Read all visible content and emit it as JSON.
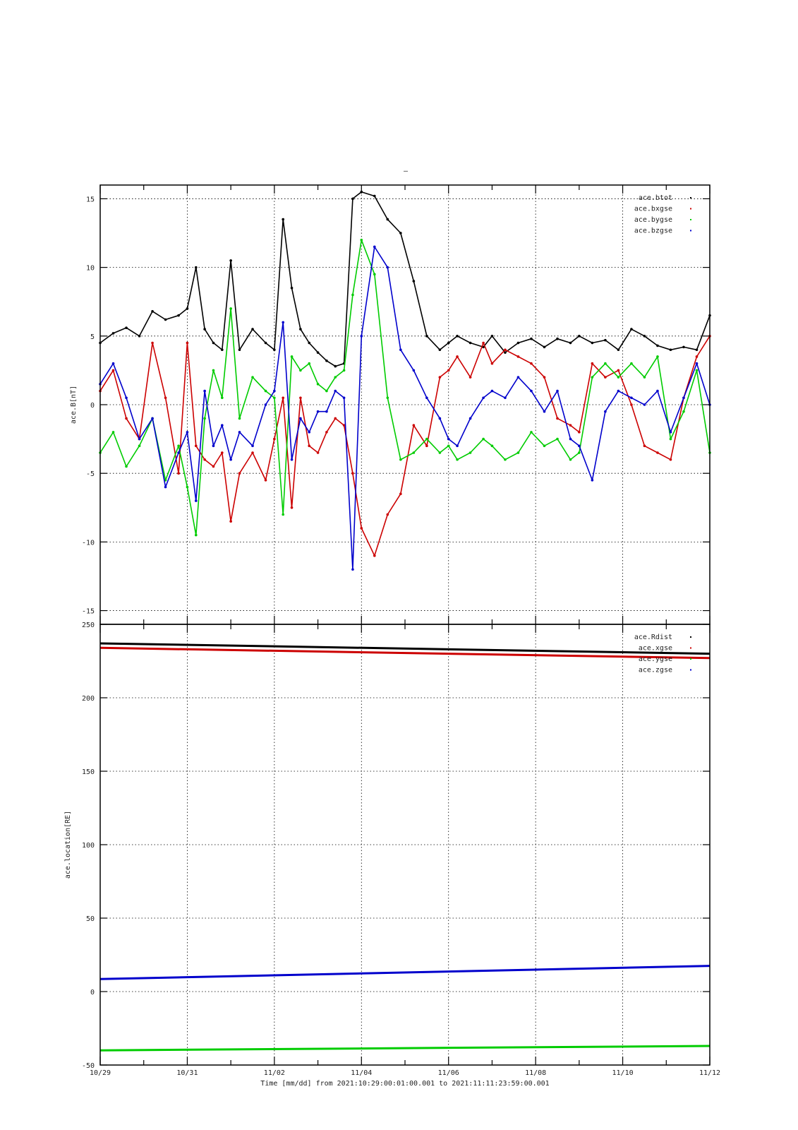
{
  "page_title": "–",
  "xlabel": "Time [mm/dd]  from 2021:10:29:00:01:00.001  to  2021:11:11:23:59:00.001",
  "x_ticks": [
    "10/29",
    "10/31",
    "11/02",
    "11/04",
    "11/06",
    "11/08",
    "11/10",
    "11/12"
  ],
  "colors": {
    "black": "#000000",
    "red": "#cc0000",
    "green": "#00cc00",
    "blue": "#0000cc"
  },
  "chart_data": [
    {
      "type": "scatter",
      "title": "",
      "ylabel": "ace.B[nT]",
      "xlim": [
        0,
        14
      ],
      "ylim": [
        -16,
        16
      ],
      "y_ticks": [
        "15",
        "10",
        "5",
        "0",
        "-5",
        "-10",
        "-15"
      ],
      "y_tick_values": [
        15,
        10,
        5,
        0,
        -5,
        -10,
        -15
      ],
      "grid": true,
      "legend": "top-right",
      "series": [
        {
          "name": "ace.btot",
          "color": "#000000",
          "x": [
            0,
            0.3,
            0.6,
            0.9,
            1.2,
            1.5,
            1.8,
            2.0,
            2.2,
            2.4,
            2.6,
            2.8,
            3.0,
            3.2,
            3.5,
            3.8,
            4.0,
            4.2,
            4.4,
            4.6,
            4.8,
            5.0,
            5.2,
            5.4,
            5.6,
            5.8,
            6.0,
            6.3,
            6.6,
            6.9,
            7.2,
            7.5,
            7.8,
            8.0,
            8.2,
            8.5,
            8.8,
            9.0,
            9.3,
            9.6,
            9.9,
            10.2,
            10.5,
            10.8,
            11.0,
            11.3,
            11.6,
            11.9,
            12.2,
            12.5,
            12.8,
            13.1,
            13.4,
            13.7,
            14.0
          ],
          "y": [
            4.5,
            5.2,
            5.6,
            5.0,
            6.8,
            6.2,
            6.5,
            7.0,
            10.0,
            5.5,
            4.5,
            4.0,
            10.5,
            4.0,
            5.5,
            4.5,
            4.0,
            13.5,
            8.5,
            5.5,
            4.5,
            3.8,
            3.2,
            2.8,
            3.0,
            15.0,
            15.5,
            15.2,
            13.5,
            12.5,
            9.0,
            5.0,
            4.0,
            4.5,
            5.0,
            4.5,
            4.2,
            5.0,
            3.8,
            4.5,
            4.8,
            4.2,
            4.8,
            4.5,
            5.0,
            4.5,
            4.7,
            4.0,
            5.5,
            5.0,
            4.3,
            4.0,
            4.2,
            4.0,
            6.5
          ]
        },
        {
          "name": "ace.bxgse",
          "color": "#cc0000",
          "x": [
            0,
            0.3,
            0.6,
            0.9,
            1.2,
            1.5,
            1.8,
            2.0,
            2.2,
            2.4,
            2.6,
            2.8,
            3.0,
            3.2,
            3.5,
            3.8,
            4.0,
            4.2,
            4.4,
            4.6,
            4.8,
            5.0,
            5.2,
            5.4,
            5.6,
            5.8,
            6.0,
            6.3,
            6.6,
            6.9,
            7.2,
            7.5,
            7.8,
            8.0,
            8.2,
            8.5,
            8.8,
            9.0,
            9.3,
            9.6,
            9.9,
            10.2,
            10.5,
            10.8,
            11.0,
            11.3,
            11.6,
            11.9,
            12.2,
            12.5,
            12.8,
            13.1,
            13.4,
            13.7,
            14.0
          ],
          "y": [
            1.0,
            2.5,
            -1.0,
            -2.5,
            4.5,
            0.5,
            -5.0,
            4.5,
            -3.0,
            -4.0,
            -4.5,
            -3.5,
            -8.5,
            -5.0,
            -3.5,
            -5.5,
            -2.5,
            0.5,
            -7.5,
            0.5,
            -3.0,
            -3.5,
            -2.0,
            -1.0,
            -1.5,
            -5.0,
            -9.0,
            -11.0,
            -8.0,
            -6.5,
            -1.5,
            -3.0,
            2.0,
            2.5,
            3.5,
            2.0,
            4.5,
            3.0,
            4.0,
            3.5,
            3.0,
            2.0,
            -1.0,
            -1.5,
            -2.0,
            3.0,
            2.0,
            2.5,
            0.0,
            -3.0,
            -3.5,
            -4.0,
            0.5,
            3.5,
            5.0
          ]
        },
        {
          "name": "ace.bygse",
          "color": "#00cc00",
          "x": [
            0,
            0.3,
            0.6,
            0.9,
            1.2,
            1.5,
            1.8,
            2.0,
            2.2,
            2.4,
            2.6,
            2.8,
            3.0,
            3.2,
            3.5,
            3.8,
            4.0,
            4.2,
            4.4,
            4.6,
            4.8,
            5.0,
            5.2,
            5.4,
            5.6,
            5.8,
            6.0,
            6.3,
            6.6,
            6.9,
            7.2,
            7.5,
            7.8,
            8.0,
            8.2,
            8.5,
            8.8,
            9.0,
            9.3,
            9.6,
            9.9,
            10.2,
            10.5,
            10.8,
            11.0,
            11.3,
            11.6,
            11.9,
            12.2,
            12.5,
            12.8,
            13.1,
            13.4,
            13.7,
            14.0
          ],
          "y": [
            -3.5,
            -2.0,
            -4.5,
            -3.0,
            -1.0,
            -5.5,
            -3.0,
            -6.0,
            -9.5,
            -1.0,
            2.5,
            0.5,
            7.0,
            -1.0,
            2.0,
            1.0,
            0.5,
            -8.0,
            3.5,
            2.5,
            3.0,
            1.5,
            1.0,
            2.0,
            2.5,
            8.0,
            12.0,
            9.5,
            0.5,
            -4.0,
            -3.5,
            -2.5,
            -3.5,
            -3.0,
            -4.0,
            -3.5,
            -2.5,
            -3.0,
            -4.0,
            -3.5,
            -2.0,
            -3.0,
            -2.5,
            -4.0,
            -3.5,
            2.0,
            3.0,
            2.0,
            3.0,
            2.0,
            3.5,
            -2.5,
            -0.5,
            2.5,
            -3.5
          ]
        },
        {
          "name": "ace.bzgse",
          "color": "#0000cc",
          "x": [
            0,
            0.3,
            0.6,
            0.9,
            1.2,
            1.5,
            1.8,
            2.0,
            2.2,
            2.4,
            2.6,
            2.8,
            3.0,
            3.2,
            3.5,
            3.8,
            4.0,
            4.2,
            4.4,
            4.6,
            4.8,
            5.0,
            5.2,
            5.4,
            5.6,
            5.8,
            6.0,
            6.3,
            6.6,
            6.9,
            7.2,
            7.5,
            7.8,
            8.0,
            8.2,
            8.5,
            8.8,
            9.0,
            9.3,
            9.6,
            9.9,
            10.2,
            10.5,
            10.8,
            11.0,
            11.3,
            11.6,
            11.9,
            12.2,
            12.5,
            12.8,
            13.1,
            13.4,
            13.7,
            14.0
          ],
          "y": [
            1.5,
            3.0,
            0.5,
            -2.5,
            -1.0,
            -6.0,
            -3.5,
            -2.0,
            -7.0,
            1.0,
            -3.0,
            -1.5,
            -4.0,
            -2.0,
            -3.0,
            0.0,
            1.0,
            6.0,
            -4.0,
            -1.0,
            -2.0,
            -0.5,
            -0.5,
            1.0,
            0.5,
            -12.0,
            5.0,
            11.5,
            10.0,
            4.0,
            2.5,
            0.5,
            -1.0,
            -2.5,
            -3.0,
            -1.0,
            0.5,
            1.0,
            0.5,
            2.0,
            1.0,
            -0.5,
            1.0,
            -2.5,
            -3.0,
            -5.5,
            -0.5,
            1.0,
            0.5,
            0.0,
            1.0,
            -2.0,
            0.5,
            3.0,
            0.0
          ]
        }
      ]
    },
    {
      "type": "line",
      "title": "",
      "ylabel": "ace.location[RE]",
      "xlim": [
        0,
        14
      ],
      "ylim": [
        -50,
        250
      ],
      "y_ticks": [
        "250",
        "200",
        "150",
        "100",
        "50",
        "0",
        "-50"
      ],
      "y_tick_values": [
        250,
        200,
        150,
        100,
        50,
        0,
        -50
      ],
      "grid": true,
      "legend": "top-right",
      "series": [
        {
          "name": "ace.Rdist",
          "color": "#000000",
          "x": [
            0,
            14
          ],
          "y": [
            237,
            230
          ]
        },
        {
          "name": "ace.xgse",
          "color": "#cc0000",
          "x": [
            0,
            14
          ],
          "y": [
            234,
            227
          ]
        },
        {
          "name": "ace.ygse",
          "color": "#00cc00",
          "x": [
            0,
            14
          ],
          "y": [
            -40,
            -37
          ]
        },
        {
          "name": "ace.zgse",
          "color": "#0000cc",
          "x": [
            0,
            14
          ],
          "y": [
            8.5,
            17.5
          ]
        }
      ]
    }
  ]
}
